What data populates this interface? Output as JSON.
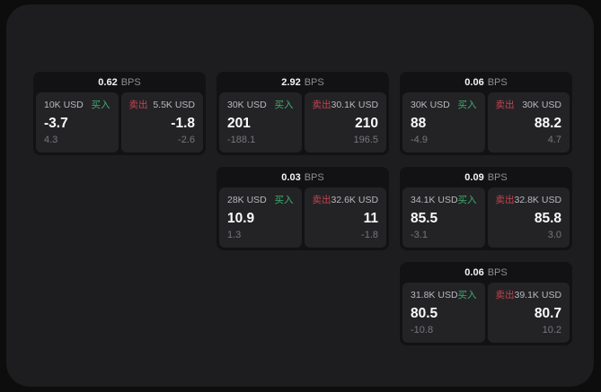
{
  "labels": {
    "bps_unit": "BPS",
    "buy": "买入",
    "sell": "卖出"
  },
  "colors": {
    "buy_green": "#3fae6e",
    "sell_red": "#c2454e",
    "panel_bg": "#1d1d1f",
    "card_bg": "#121214",
    "pane_bg": "#232326"
  },
  "cards": [
    {
      "bps": "0.62",
      "buy_amount": "10K USD",
      "buy_value": "-3.7",
      "buy_sub": "4.3",
      "sell_amount": "5.5K USD",
      "sell_value": "-1.8",
      "sell_sub": "-2.6"
    },
    {
      "bps": "2.92",
      "buy_amount": "30K USD",
      "buy_value": "201",
      "buy_sub": "-188.1",
      "sell_amount": "30.1K USD",
      "sell_value": "210",
      "sell_sub": "196.5"
    },
    {
      "bps": "0.06",
      "buy_amount": "30K USD",
      "buy_value": "88",
      "buy_sub": "-4.9",
      "sell_amount": "30K USD",
      "sell_value": "88.2",
      "sell_sub": "4.7"
    },
    {
      "bps": "0.03",
      "buy_amount": "28K USD",
      "buy_value": "10.9",
      "buy_sub": "1.3",
      "sell_amount": "32.6K USD",
      "sell_value": "11",
      "sell_sub": "-1.8"
    },
    {
      "bps": "0.09",
      "buy_amount": "34.1K USD",
      "buy_value": "85.5",
      "buy_sub": "-3.1",
      "sell_amount": "32.8K USD",
      "sell_value": "85.8",
      "sell_sub": "3.0"
    },
    {
      "bps": "0.06",
      "buy_amount": "31.8K USD",
      "buy_value": "80.5",
      "buy_sub": "-10.8",
      "sell_amount": "39.1K USD",
      "sell_value": "80.7",
      "sell_sub": "10.2"
    }
  ]
}
